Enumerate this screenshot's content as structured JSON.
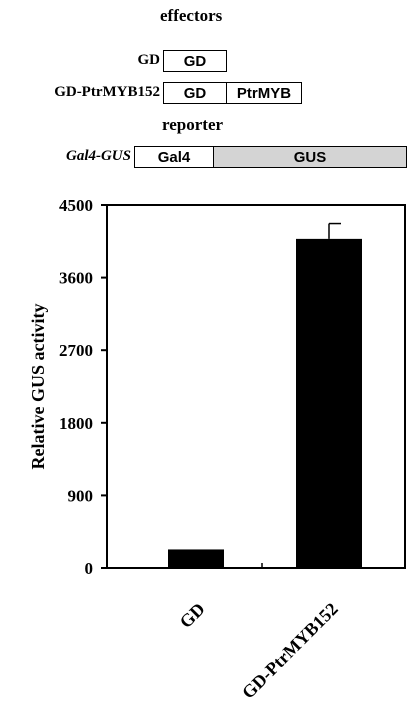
{
  "constructs": {
    "effectors_heading": "effectors",
    "reporter_heading": "reporter",
    "gd_row": {
      "label": "GD",
      "box1": "GD"
    },
    "fusion_row": {
      "label": "GD-PtrMYB152",
      "box1": "GD",
      "box2": "PtrMYB"
    },
    "reporter_row": {
      "label": "Gal4-GUS",
      "box1": "Gal4",
      "box2": "GUS"
    },
    "reporter_fill": "#d4d4d4"
  },
  "chart_data": {
    "type": "bar",
    "categories": [
      "GD",
      "GD-PtrMYB152"
    ],
    "values": [
      230,
      4080
    ],
    "errors": [
      0,
      190
    ],
    "ylabel": "Relative GUS activity",
    "xlabel": "",
    "ylim": [
      0,
      4500
    ],
    "yticks": [
      0,
      900,
      1800,
      2700,
      3600,
      4500
    ],
    "ytick_labels": [
      "0",
      "900",
      "1800",
      "2700",
      "3600",
      "4500"
    ],
    "bar_color": "#000000",
    "grid": false
  }
}
